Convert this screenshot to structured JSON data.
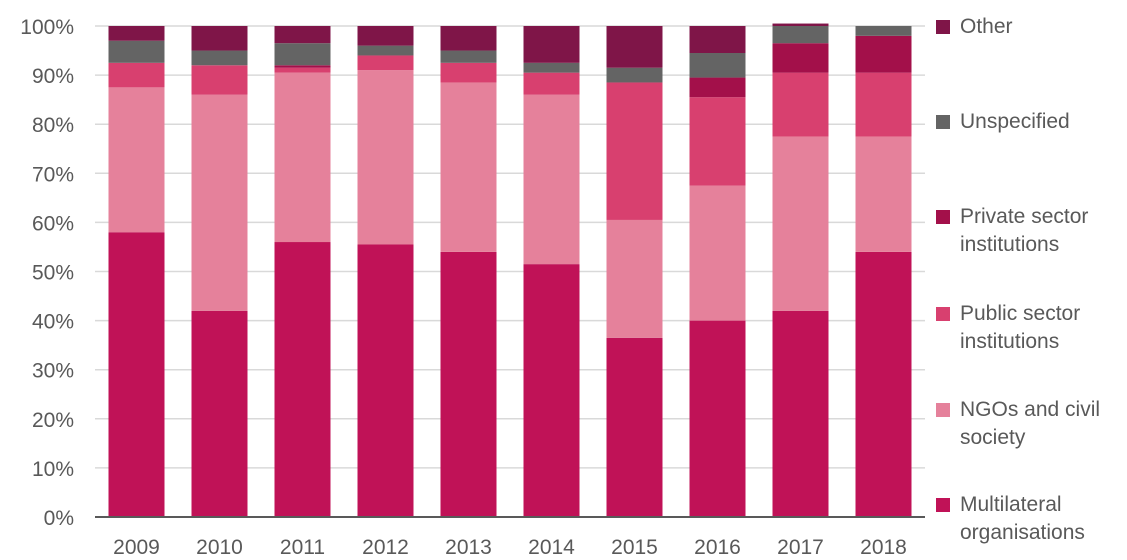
{
  "chart_data": {
    "type": "bar",
    "stacked": true,
    "normalized": true,
    "categories": [
      "2009",
      "2010",
      "2011",
      "2012",
      "2013",
      "2014",
      "2015",
      "2016",
      "2017",
      "2018"
    ],
    "series": [
      {
        "name": "Multilateral organisations",
        "legend_lines": [
          "Multilateral",
          "organisations"
        ],
        "color": "#c01257",
        "values": [
          58,
          42,
          56,
          55.5,
          54,
          51.5,
          36.5,
          40,
          42,
          54
        ]
      },
      {
        "name": "NGOs and civil society",
        "legend_lines": [
          "NGOs and civil",
          "society"
        ],
        "color": "#e5819b",
        "values": [
          29.5,
          44,
          34.5,
          35.5,
          34.5,
          34.5,
          24,
          27.5,
          35.5,
          23.5
        ]
      },
      {
        "name": "Public sector institutions",
        "legend_lines": [
          "Public sector",
          "institutions"
        ],
        "color": "#d8406f",
        "values": [
          5,
          6,
          1,
          3,
          4,
          4.5,
          28,
          18,
          13,
          13
        ]
      },
      {
        "name": "Private sector institutions",
        "legend_lines": [
          "Private sector",
          "institutions"
        ],
        "color": "#a3104a",
        "values": [
          0,
          0,
          0.5,
          0,
          0,
          0,
          0,
          4,
          6,
          7.5
        ]
      },
      {
        "name": "Unspecified",
        "legend_lines": [
          "Unspecified"
        ],
        "color": "#646464",
        "values": [
          4.5,
          3,
          4.5,
          2,
          2.5,
          2,
          3,
          5,
          3.5,
          2
        ]
      },
      {
        "name": "Other",
        "legend_lines": [
          "Other"
        ],
        "color": "#7f1548",
        "values": [
          3,
          5,
          3.5,
          4,
          5,
          7.5,
          8.5,
          5.5,
          0.5,
          0
        ]
      }
    ],
    "yaxis": {
      "ticks": [
        0,
        10,
        20,
        30,
        40,
        50,
        60,
        70,
        80,
        90,
        100
      ],
      "tick_format": "{v}%",
      "ylim": [
        0,
        100
      ]
    },
    "xlabel": "",
    "ylabel": "",
    "grid": true,
    "legend_position": "right"
  }
}
